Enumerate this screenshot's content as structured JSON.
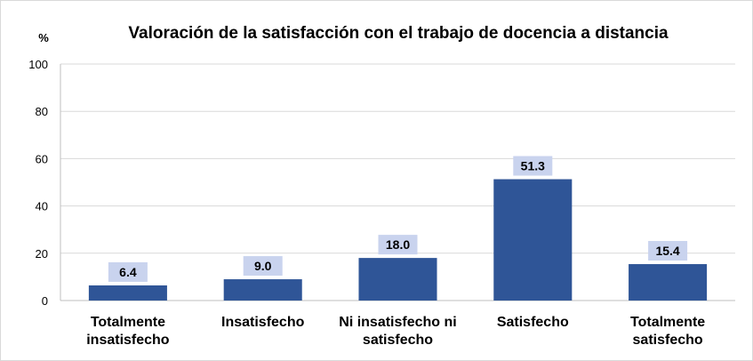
{
  "chart_data": {
    "type": "bar",
    "title": "Valoración de la satisfacción con el trabajo de docencia a distancia",
    "ylabel": "%",
    "xlabel": "",
    "categories": [
      [
        "Totalmente",
        "insatisfecho"
      ],
      [
        "Insatisfecho"
      ],
      [
        "Ni insatisfecho ni",
        "satisfecho"
      ],
      [
        "Satisfecho"
      ],
      [
        "Totalmente",
        "satisfecho"
      ]
    ],
    "values": [
      6.4,
      9.0,
      18.0,
      51.3,
      15.4
    ],
    "value_labels": [
      "6.4",
      "9.0",
      "18.0",
      "51.3",
      "15.4"
    ],
    "ylim": [
      0,
      100
    ],
    "yticks": [
      0,
      20,
      40,
      60,
      80,
      100
    ],
    "grid": true,
    "colors": {
      "bar": "#2F5597",
      "label_bg": "#C9D3EE",
      "grid": "#d9d9d9",
      "axis": "#bfbfbf"
    }
  }
}
